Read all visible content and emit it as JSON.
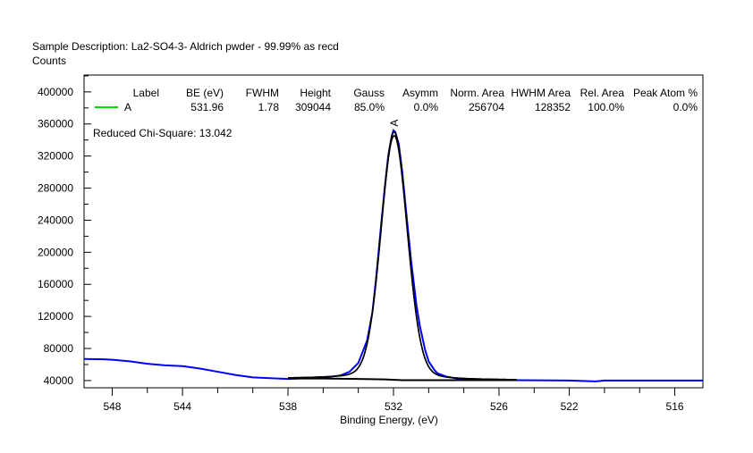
{
  "header": {
    "description": "Sample Description:  La2-SO4-3- Aldrich pwder - 99.99% as recd",
    "y_unit": "Counts"
  },
  "chart_data": {
    "type": "line",
    "title": "Sample Description:  La2-SO4-3- Aldrich pwder - 99.99% as recd",
    "xlabel": "Binding Energy, (eV)",
    "ylabel": "Counts",
    "xlim": [
      549.6,
      514.4
    ],
    "x_reversed": true,
    "ylim": [
      31000,
      421000
    ],
    "x_ticks": [
      548,
      544,
      538,
      532,
      526,
      522,
      516
    ],
    "x_tick_labels": [
      "548",
      "544",
      "538",
      "532",
      "526",
      "522",
      "516"
    ],
    "x_minor_step": 2,
    "y_ticks": [
      40000,
      80000,
      120000,
      160000,
      200000,
      240000,
      280000,
      320000,
      360000,
      400000
    ],
    "y_tick_labels": [
      "40000",
      "80000",
      "120000",
      "160000",
      "200000",
      "240000",
      "280000",
      "320000",
      "360000",
      "400000"
    ],
    "y_minor_step": 20000,
    "grid": false,
    "legend_placement": "top",
    "colors": {
      "spectrum": "#0000ff",
      "fit": "#000000",
      "peak_A": "#00dd00"
    },
    "series": [
      {
        "name": "Spectrum",
        "x": [
          549.6,
          548.5,
          548,
          547,
          546,
          545,
          544,
          543,
          542,
          541,
          540,
          539,
          538,
          537,
          536,
          535.5,
          535,
          534.5,
          534,
          533.5,
          533.2,
          533,
          532.7,
          532.5,
          532.3,
          532.1,
          532,
          531.9,
          531.7,
          531.5,
          531.3,
          531,
          530.7,
          530.5,
          530.2,
          530,
          529.7,
          529.5,
          529,
          528.5,
          528,
          527,
          526,
          525,
          524,
          522,
          520.5,
          520,
          518,
          516,
          514.4
        ],
        "y": [
          67000,
          66500,
          66000,
          64000,
          61000,
          59000,
          58000,
          55000,
          51000,
          47000,
          44000,
          43000,
          42000,
          43000,
          44000,
          45000,
          46500,
          51000,
          62000,
          90000,
          125000,
          165000,
          235000,
          280000,
          320000,
          345000,
          352000,
          350000,
          335000,
          300000,
          255000,
          190000,
          135000,
          108000,
          78000,
          64000,
          54000,
          49000,
          45000,
          43000,
          42000,
          41500,
          41000,
          40500,
          40300,
          40000,
          39000,
          40000,
          40000,
          40000,
          40000
        ]
      },
      {
        "name": "Background",
        "x": [
          538,
          536,
          534,
          532.5,
          531.5,
          530,
          528,
          526,
          525
        ],
        "y": [
          42500,
          42500,
          42000,
          41500,
          40500,
          40500,
          40500,
          40500,
          40500
        ]
      }
    ],
    "peaks": [
      {
        "label": "A",
        "be": 531.96,
        "fwhm": 1.78,
        "height": 309044,
        "gauss_pct": 85.0
      }
    ],
    "annotations": [
      "A"
    ],
    "peak_table": {
      "headers": [
        "Label",
        "BE (eV)",
        "FWHM",
        "Height",
        "Gauss",
        "Asymm",
        "Norm. Area",
        "HWHM Area",
        "Rel. Area",
        "Peak Atom %"
      ],
      "rows": [
        [
          "A",
          "531.96",
          "1.78",
          "309044",
          "85.0%",
          "0.0%",
          "256704",
          "128352",
          "100.0%",
          "0.0%"
        ]
      ]
    },
    "chi_square": "Reduced Chi-Square: 13.042"
  }
}
